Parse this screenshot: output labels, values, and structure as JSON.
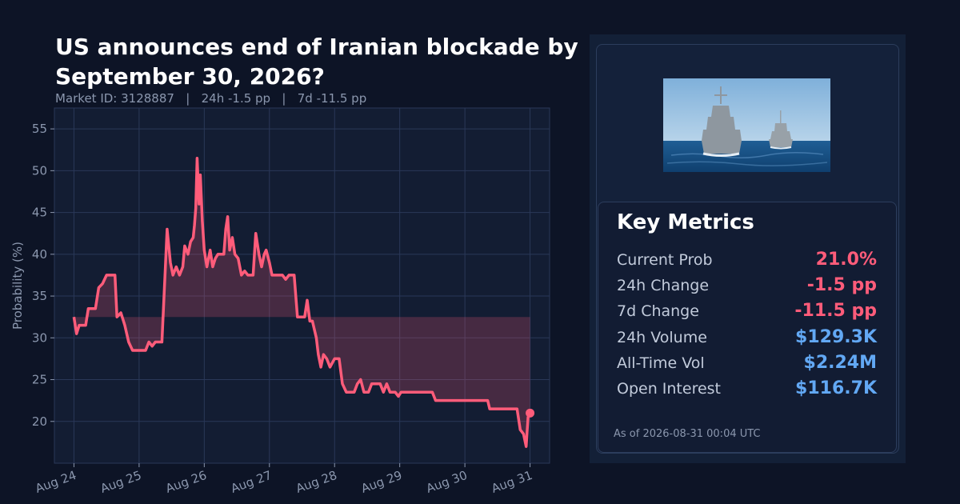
{
  "title": "US announces end of Iranian blockade by September 30, 2026?",
  "subtitle": {
    "market_id": "Market ID: 3128887",
    "change_24h": "24h -1.5 pp",
    "change_7d": "7d -11.5 pp",
    "separator": "|"
  },
  "colors": {
    "line": "#ff5c7a",
    "positive_metric": "#62a8f4",
    "negative_metric": "#ff5c7a",
    "background": "#0d1426"
  },
  "image": {
    "icon": "warship-photo-icon"
  },
  "metrics": {
    "title": "Key Metrics",
    "rows": [
      {
        "label": "Current Prob",
        "value": "21.0%",
        "tone": "neg"
      },
      {
        "label": "24h Change",
        "value": "-1.5 pp",
        "tone": "neg"
      },
      {
        "label": "7d Change",
        "value": "-11.5 pp",
        "tone": "neg"
      },
      {
        "label": "24h Volume",
        "value": "$129.3K",
        "tone": "blue"
      },
      {
        "label": "All-Time Vol",
        "value": "$2.24M",
        "tone": "blue"
      },
      {
        "label": "Open Interest",
        "value": "$116.7K",
        "tone": "blue"
      }
    ],
    "as_of": "As of 2026-08-31 00:04 UTC"
  },
  "chart_data": {
    "type": "line",
    "ylabel": "Probability (%)",
    "xlabel": "",
    "ylim": [
      15,
      57.5
    ],
    "xlim": [
      -0.3,
      7.3
    ],
    "yticks": [
      20,
      25,
      30,
      35,
      40,
      45,
      50,
      55
    ],
    "xtick_labels": [
      "Aug 24",
      "Aug 25",
      "Aug 26",
      "Aug 27",
      "Aug 28",
      "Aug 29",
      "Aug 30",
      "Aug 31"
    ],
    "x_unit": "days since Aug 24",
    "grid": true,
    "fill_baseline": 32.5,
    "series": [
      {
        "values": [
          [
            0.0,
            32.5
          ],
          [
            0.04,
            30.5
          ],
          [
            0.08,
            31.5
          ],
          [
            0.18,
            31.5
          ],
          [
            0.22,
            33.5
          ],
          [
            0.33,
            33.5
          ],
          [
            0.38,
            36.0
          ],
          [
            0.44,
            36.5
          ],
          [
            0.5,
            37.5
          ],
          [
            0.63,
            37.5
          ],
          [
            0.66,
            32.5
          ],
          [
            0.72,
            33.0
          ],
          [
            0.78,
            31.5
          ],
          [
            0.84,
            29.5
          ],
          [
            0.9,
            28.5
          ],
          [
            1.1,
            28.5
          ],
          [
            1.15,
            29.5
          ],
          [
            1.2,
            29.0
          ],
          [
            1.25,
            29.5
          ],
          [
            1.35,
            29.5
          ],
          [
            1.4,
            38.0
          ],
          [
            1.43,
            43.0
          ],
          [
            1.48,
            39.0
          ],
          [
            1.52,
            37.5
          ],
          [
            1.57,
            38.5
          ],
          [
            1.62,
            37.5
          ],
          [
            1.67,
            38.5
          ],
          [
            1.7,
            41.0
          ],
          [
            1.75,
            40.0
          ],
          [
            1.79,
            41.5
          ],
          [
            1.83,
            42.0
          ],
          [
            1.85,
            43.5
          ],
          [
            1.87,
            45.5
          ],
          [
            1.89,
            51.5
          ],
          [
            1.92,
            46.0
          ],
          [
            1.94,
            49.5
          ],
          [
            1.97,
            44.0
          ],
          [
            2.0,
            40.5
          ],
          [
            2.04,
            38.5
          ],
          [
            2.09,
            40.5
          ],
          [
            2.13,
            38.5
          ],
          [
            2.17,
            39.5
          ],
          [
            2.21,
            40.0
          ],
          [
            2.3,
            40.0
          ],
          [
            2.33,
            43.0
          ],
          [
            2.36,
            44.5
          ],
          [
            2.39,
            40.5
          ],
          [
            2.43,
            42.0
          ],
          [
            2.47,
            40.0
          ],
          [
            2.52,
            39.5
          ],
          [
            2.57,
            37.5
          ],
          [
            2.62,
            38.0
          ],
          [
            2.67,
            37.5
          ],
          [
            2.75,
            37.5
          ],
          [
            2.79,
            42.5
          ],
          [
            2.84,
            40.0
          ],
          [
            2.88,
            38.5
          ],
          [
            2.92,
            40.0
          ],
          [
            2.95,
            40.5
          ],
          [
            3.0,
            39.0
          ],
          [
            3.04,
            37.5
          ],
          [
            3.2,
            37.5
          ],
          [
            3.25,
            37.0
          ],
          [
            3.3,
            37.5
          ],
          [
            3.38,
            37.5
          ],
          [
            3.43,
            32.5
          ],
          [
            3.54,
            32.5
          ],
          [
            3.58,
            34.5
          ],
          [
            3.62,
            32.0
          ],
          [
            3.66,
            32.0
          ],
          [
            3.72,
            30.0
          ],
          [
            3.75,
            28.0
          ],
          [
            3.79,
            26.5
          ],
          [
            3.83,
            28.0
          ],
          [
            3.88,
            27.5
          ],
          [
            3.93,
            26.5
          ],
          [
            4.0,
            27.5
          ],
          [
            4.07,
            27.5
          ],
          [
            4.12,
            24.5
          ],
          [
            4.18,
            23.5
          ],
          [
            4.3,
            23.5
          ],
          [
            4.35,
            24.5
          ],
          [
            4.4,
            25.0
          ],
          [
            4.45,
            23.5
          ],
          [
            4.52,
            23.5
          ],
          [
            4.57,
            24.5
          ],
          [
            4.7,
            24.5
          ],
          [
            4.75,
            23.5
          ],
          [
            4.8,
            24.5
          ],
          [
            4.85,
            23.5
          ],
          [
            4.93,
            23.5
          ],
          [
            4.98,
            23.0
          ],
          [
            5.02,
            23.5
          ],
          [
            5.5,
            23.5
          ],
          [
            5.55,
            22.5
          ],
          [
            6.35,
            22.5
          ],
          [
            6.38,
            21.5
          ],
          [
            6.8,
            21.5
          ],
          [
            6.85,
            19.0
          ],
          [
            6.9,
            18.5
          ],
          [
            6.94,
            17.0
          ],
          [
            6.97,
            20.5
          ],
          [
            7.0,
            21.0
          ]
        ]
      }
    ]
  }
}
